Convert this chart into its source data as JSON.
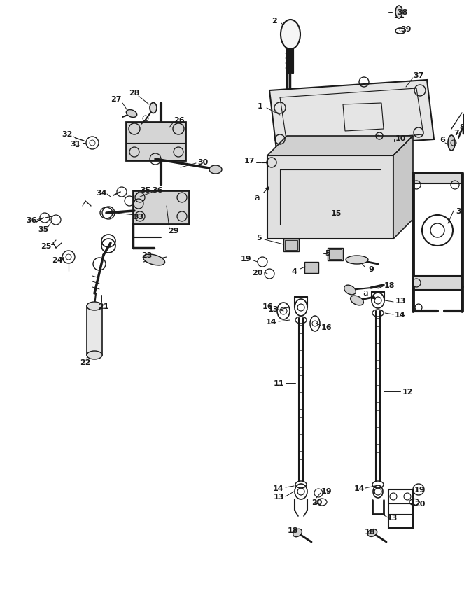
{
  "bg": "#ffffff",
  "lc": "#1a1a1a",
  "figsize": [
    6.63,
    8.45
  ],
  "dpi": 100
}
